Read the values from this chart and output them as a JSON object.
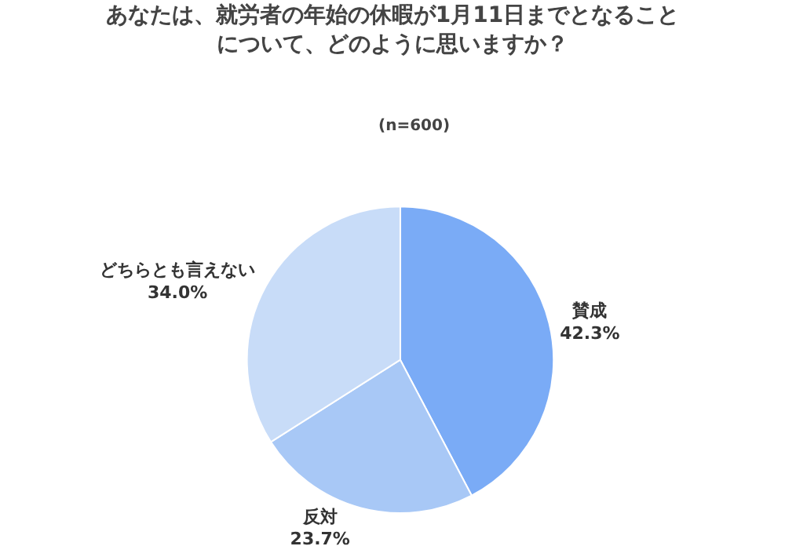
{
  "chart_data": {
    "type": "pie",
    "title": "あなたは、就労者の年始の休暇が1月11日までとなることについて、どのように思いますか？",
    "subtitle": "(n=600)",
    "categories": [
      "賛成",
      "反対",
      "どちらとも言えない"
    ],
    "values": [
      42.3,
      23.7,
      34.0
    ],
    "value_labels": [
      "42.3%",
      "23.7%",
      "34.0%"
    ],
    "colors": [
      "#7aabf6",
      "#a8c8f6",
      "#c8dcf8"
    ],
    "legend": false
  }
}
